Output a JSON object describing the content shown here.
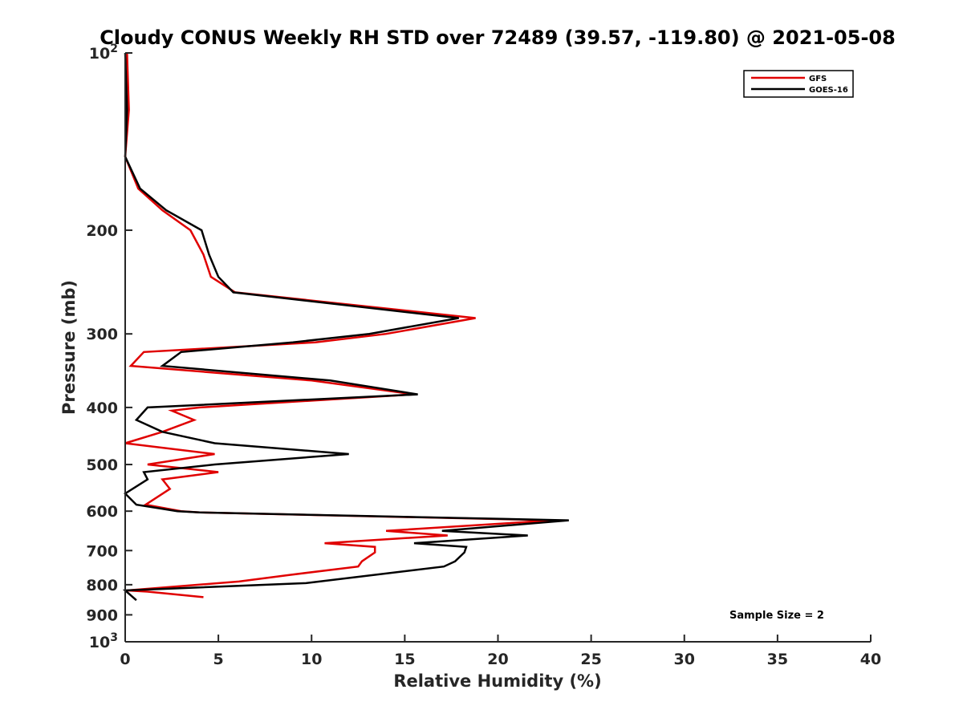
{
  "chart_data": {
    "type": "line",
    "title": "Cloudy CONUS Weekly RH STD over 72489 (39.57, -119.80) @ 2021-05-08",
    "xlabel": "Relative Humidity (%)",
    "ylabel": "Pressure (mb)",
    "xlim": [
      0,
      40
    ],
    "ylim": [
      100,
      1000
    ],
    "y_scale": "log",
    "y_reversed": true,
    "grid": false,
    "legend_position": "top-right",
    "x_ticks": [
      "0",
      "5",
      "10",
      "15",
      "20",
      "25",
      "30",
      "35",
      "40"
    ],
    "y_ticks": [
      {
        "value": 100,
        "base": "10",
        "exp": "2"
      },
      {
        "value": 200,
        "label": "200"
      },
      {
        "value": 300,
        "label": "300"
      },
      {
        "value": 400,
        "label": "400"
      },
      {
        "value": 500,
        "label": "500"
      },
      {
        "value": 600,
        "label": "600"
      },
      {
        "value": 700,
        "label": "700"
      },
      {
        "value": 800,
        "label": "800"
      },
      {
        "value": 900,
        "label": "900"
      },
      {
        "value": 1000,
        "base": "10",
        "exp": "3"
      }
    ],
    "annotation": "Sample Size = 2",
    "series": [
      {
        "name": "GFS",
        "color": "#e00000",
        "points": [
          [
            0.1,
            100
          ],
          [
            0.2,
            125
          ],
          [
            0.0,
            150
          ],
          [
            0.7,
            170
          ],
          [
            2.0,
            185
          ],
          [
            3.5,
            200
          ],
          [
            4.2,
            220
          ],
          [
            4.6,
            240
          ],
          [
            5.9,
            255
          ],
          [
            18.8,
            282
          ],
          [
            14.0,
            300
          ],
          [
            10.2,
            310
          ],
          [
            1.0,
            322
          ],
          [
            0.3,
            340
          ],
          [
            10.0,
            360
          ],
          [
            15.5,
            380
          ],
          [
            4.0,
            400
          ],
          [
            2.5,
            405
          ],
          [
            3.7,
            420
          ],
          [
            2.0,
            440
          ],
          [
            0.0,
            460
          ],
          [
            4.8,
            480
          ],
          [
            1.2,
            500
          ],
          [
            5.0,
            515
          ],
          [
            2.0,
            530
          ],
          [
            2.4,
            550
          ],
          [
            1.1,
            585
          ],
          [
            3.0,
            600
          ],
          [
            4.0,
            603
          ],
          [
            23.0,
            622
          ],
          [
            14.0,
            648
          ],
          [
            17.3,
            660
          ],
          [
            10.7,
            680
          ],
          [
            13.4,
            690
          ],
          [
            13.4,
            705
          ],
          [
            12.7,
            730
          ],
          [
            12.5,
            745
          ],
          [
            8.8,
            770
          ],
          [
            6.1,
            790
          ],
          [
            0.1,
            818
          ],
          [
            1.2,
            822
          ],
          [
            4.2,
            840
          ]
        ]
      },
      {
        "name": "GOES-16",
        "color": "#000000",
        "points": [
          [
            0.0,
            100
          ],
          [
            0.1,
            125
          ],
          [
            0.0,
            150
          ],
          [
            0.8,
            170
          ],
          [
            2.2,
            185
          ],
          [
            4.1,
            200
          ],
          [
            4.5,
            220
          ],
          [
            5.0,
            240
          ],
          [
            5.8,
            255
          ],
          [
            17.9,
            282
          ],
          [
            13.1,
            300
          ],
          [
            9.0,
            310
          ],
          [
            3.0,
            322
          ],
          [
            2.0,
            340
          ],
          [
            11.0,
            360
          ],
          [
            15.7,
            380
          ],
          [
            1.2,
            400
          ],
          [
            0.6,
            420
          ],
          [
            2.0,
            440
          ],
          [
            4.8,
            460
          ],
          [
            12.0,
            480
          ],
          [
            4.8,
            500
          ],
          [
            1.0,
            515
          ],
          [
            1.2,
            530
          ],
          [
            0.0,
            560
          ],
          [
            0.6,
            585
          ],
          [
            2.8,
            600
          ],
          [
            4.0,
            603
          ],
          [
            23.8,
            622
          ],
          [
            17.0,
            648
          ],
          [
            21.6,
            660
          ],
          [
            15.5,
            680
          ],
          [
            18.3,
            690
          ],
          [
            18.2,
            705
          ],
          [
            17.7,
            730
          ],
          [
            17.1,
            745
          ],
          [
            9.7,
            795
          ],
          [
            0.0,
            818
          ],
          [
            0.6,
            850
          ]
        ]
      }
    ]
  }
}
